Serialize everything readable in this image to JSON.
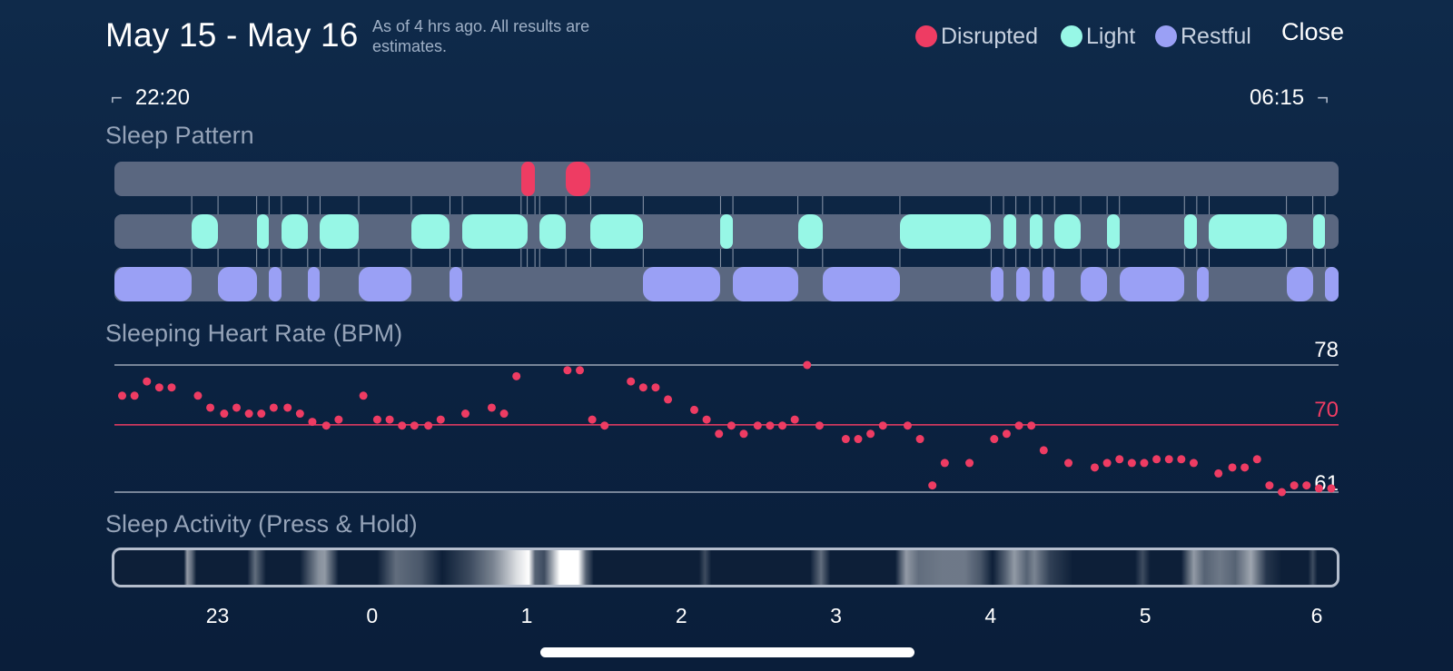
{
  "header": {
    "title": "May 15 - May 16",
    "subtitle": "As of 4 hrs ago. All results are estimates.",
    "close_label": "Close"
  },
  "legend": [
    {
      "label": "Disrupted",
      "color": "#ee3c63"
    },
    {
      "label": "Light",
      "color": "#97f7e6"
    },
    {
      "label": "Restful",
      "color": "#9aa0f5"
    }
  ],
  "time_range": {
    "start": "22:20",
    "end": "06:15"
  },
  "sections": {
    "sleep_pattern": "Sleep Pattern",
    "heart_rate": "Sleeping Heart Rate (BPM)",
    "activity": "Sleep Activity (Press & Hold)"
  },
  "x_axis_ticks": [
    "23",
    "0",
    "1",
    "2",
    "3",
    "4",
    "5",
    "6"
  ],
  "chart_data": [
    {
      "type": "timeline",
      "x_unit": "hours since 22:20",
      "xlim": [
        0,
        7.917
      ],
      "tracks": [
        {
          "name": "Disrupted",
          "color": "#ee3c63",
          "intervals": [
            [
              2.63,
              2.72
            ],
            [
              2.92,
              3.08
            ]
          ]
        },
        {
          "name": "Light",
          "color": "#97f7e6",
          "intervals": [
            [
              0.5,
              0.67
            ],
            [
              0.92,
              1.0
            ],
            [
              1.08,
              1.25
            ],
            [
              1.33,
              1.58
            ],
            [
              1.92,
              2.17
            ],
            [
              2.25,
              2.67
            ],
            [
              2.75,
              2.92
            ],
            [
              3.08,
              3.42
            ],
            [
              3.92,
              4.0
            ],
            [
              4.42,
              4.58
            ],
            [
              5.08,
              5.67
            ],
            [
              5.75,
              5.83
            ],
            [
              5.92,
              6.0
            ],
            [
              6.08,
              6.25
            ],
            [
              6.42,
              6.5
            ],
            [
              6.92,
              7.0
            ],
            [
              7.08,
              7.58
            ],
            [
              7.75,
              7.83
            ]
          ]
        },
        {
          "name": "Restful",
          "color": "#9aa0f5",
          "intervals": [
            [
              0.0,
              0.5
            ],
            [
              0.67,
              0.92
            ],
            [
              1.0,
              1.08
            ],
            [
              1.25,
              1.33
            ],
            [
              1.58,
              1.92
            ],
            [
              2.17,
              2.25
            ],
            [
              3.42,
              3.92
            ],
            [
              4.0,
              4.42
            ],
            [
              4.58,
              5.08
            ],
            [
              5.67,
              5.75
            ],
            [
              5.83,
              5.92
            ],
            [
              6.0,
              6.08
            ],
            [
              6.25,
              6.42
            ],
            [
              6.5,
              6.92
            ],
            [
              7.0,
              7.08
            ],
            [
              7.58,
              7.75
            ],
            [
              7.83,
              7.917
            ]
          ]
        }
      ]
    },
    {
      "type": "scatter",
      "title": "Sleeping Heart Rate (BPM)",
      "x_unit": "hours since 22:20",
      "xlim": [
        0,
        7.917
      ],
      "ylim": [
        61,
        78
      ],
      "reference_lines": [
        {
          "value": 78,
          "label": "78",
          "color": "#9ba6b6"
        },
        {
          "value": 70,
          "label": "70",
          "color": "#ee3c63"
        },
        {
          "value": 61,
          "label": "61",
          "color": "#9ba6b6"
        }
      ],
      "x": [
        0.05,
        0.13,
        0.21,
        0.29,
        0.37,
        0.54,
        0.62,
        0.71,
        0.79,
        0.87,
        0.95,
        1.03,
        1.12,
        1.2,
        1.28,
        1.37,
        1.45,
        1.61,
        1.7,
        1.78,
        1.86,
        1.94,
        2.03,
        2.11,
        2.27,
        2.44,
        2.52,
        2.6,
        2.93,
        3.01,
        3.09,
        3.17,
        3.34,
        3.42,
        3.5,
        3.58,
        3.75,
        3.83,
        3.91,
        3.99,
        4.07,
        4.16,
        4.24,
        4.32,
        4.4,
        4.48,
        4.56,
        4.73,
        4.81,
        4.89,
        4.97,
        5.13,
        5.21,
        5.29,
        5.37,
        5.53,
        5.69,
        5.77,
        5.85,
        5.93,
        6.01,
        6.17,
        6.34,
        6.42,
        6.5,
        6.58,
        6.66,
        6.74,
        6.82,
        6.9,
        6.98,
        7.14,
        7.23,
        7.31,
        7.39,
        7.47,
        7.55,
        7.63,
        7.71,
        7.79,
        7.87
      ],
      "y": [
        73.9,
        73.9,
        75.8,
        75.0,
        75.0,
        73.9,
        72.3,
        71.5,
        72.3,
        71.5,
        71.5,
        72.3,
        72.3,
        71.5,
        70.4,
        69.9,
        70.7,
        73.9,
        70.7,
        70.7,
        69.9,
        69.9,
        69.9,
        70.7,
        71.5,
        72.3,
        71.5,
        76.5,
        77.3,
        77.3,
        70.7,
        69.9,
        75.8,
        75.0,
        75.0,
        73.4,
        72.0,
        70.7,
        68.8,
        69.9,
        68.8,
        69.9,
        69.9,
        69.9,
        70.7,
        78.0,
        69.9,
        68.1,
        68.1,
        68.8,
        69.9,
        69.9,
        68.1,
        61.9,
        64.9,
        64.9,
        68.1,
        68.8,
        69.9,
        69.9,
        66.6,
        64.9,
        64.3,
        64.9,
        65.4,
        64.9,
        64.9,
        65.4,
        65.4,
        65.4,
        64.9,
        63.5,
        64.3,
        64.3,
        65.4,
        61.9,
        61.0,
        61.9,
        61.9,
        61.5,
        61.5
      ]
    },
    {
      "type": "heatmap",
      "title": "Sleep Activity (Press & Hold)",
      "x_unit": "hours since 22:20",
      "xlim": [
        0,
        7.917
      ],
      "intensity": [
        [
          0.45,
          0.0
        ],
        [
          0.47,
          0.55
        ],
        [
          0.5,
          0.35
        ],
        [
          0.53,
          0.0
        ],
        [
          0.86,
          0.0
        ],
        [
          0.91,
          0.35
        ],
        [
          0.98,
          0.0
        ],
        [
          1.2,
          0.0
        ],
        [
          1.32,
          0.5
        ],
        [
          1.36,
          0.55
        ],
        [
          1.45,
          0.0
        ],
        [
          1.7,
          0.0
        ],
        [
          1.82,
          0.35
        ],
        [
          1.98,
          0.25
        ],
        [
          2.12,
          0.0
        ],
        [
          2.3,
          0.2
        ],
        [
          2.45,
          0.45
        ],
        [
          2.6,
          0.85
        ],
        [
          2.68,
          1.0
        ],
        [
          2.72,
          0.3
        ],
        [
          2.78,
          0.2
        ],
        [
          2.88,
          1.0
        ],
        [
          3.0,
          1.0
        ],
        [
          3.05,
          0.3
        ],
        [
          3.1,
          0.0
        ],
        [
          3.78,
          0.0
        ],
        [
          3.82,
          0.2
        ],
        [
          3.86,
          0.0
        ],
        [
          4.5,
          0.0
        ],
        [
          4.57,
          0.35
        ],
        [
          4.63,
          0.0
        ],
        [
          5.05,
          0.0
        ],
        [
          5.12,
          0.55
        ],
        [
          5.2,
          0.35
        ],
        [
          5.35,
          0.4
        ],
        [
          5.5,
          0.4
        ],
        [
          5.6,
          0.25
        ],
        [
          5.68,
          0.0
        ],
        [
          5.75,
          0.25
        ],
        [
          5.82,
          0.55
        ],
        [
          5.9,
          0.3
        ],
        [
          5.95,
          0.45
        ],
        [
          6.05,
          0.15
        ],
        [
          6.2,
          0.0
        ],
        [
          6.6,
          0.0
        ],
        [
          6.65,
          0.2
        ],
        [
          6.7,
          0.0
        ],
        [
          6.9,
          0.0
        ],
        [
          6.98,
          0.55
        ],
        [
          7.05,
          0.3
        ],
        [
          7.15,
          0.4
        ],
        [
          7.25,
          0.3
        ],
        [
          7.35,
          0.6
        ],
        [
          7.45,
          0.1
        ],
        [
          7.55,
          0.0
        ],
        [
          7.72,
          0.0
        ],
        [
          7.75,
          0.2
        ],
        [
          7.78,
          0.0
        ]
      ]
    }
  ]
}
